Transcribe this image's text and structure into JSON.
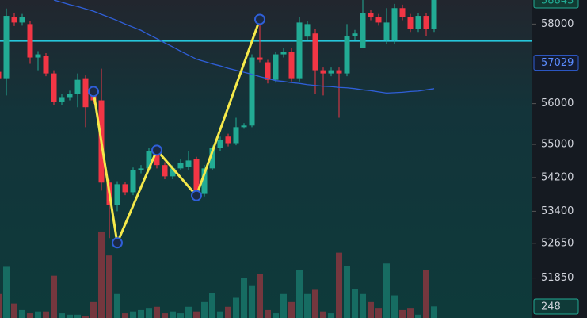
{
  "chart_data": {
    "type": "candlestick",
    "log_scale": true,
    "ylim": [
      50960,
      58620
    ],
    "yticks": [
      58000,
      56000,
      55000,
      54200,
      53400,
      52650,
      51850
    ],
    "up_color": "#22ab94",
    "down_color": "#f23645",
    "open": [
      56790,
      56630,
      58170,
      58040,
      58000,
      57150,
      57190,
      56750,
      56040,
      56160,
      56240,
      56630,
      56240,
      56080,
      54080,
      53550,
      54040,
      53850,
      54380,
      54420,
      54840,
      54500,
      54230,
      54420,
      54460,
      54650,
      53810,
      54420,
      54910,
      55190,
      55030,
      55420,
      55460,
      57150,
      57030,
      56590,
      57230,
      57290,
      56630,
      57680,
      57760,
      56830,
      56750,
      56830,
      56750,
      57700,
      57390,
      58290,
      58170,
      57600,
      57600,
      58410,
      58170,
      57880,
      58210,
      57880
    ],
    "high": [
      56900,
      58400,
      58290,
      58260,
      58080,
      57310,
      57260,
      56830,
      56240,
      56320,
      56750,
      56700,
      56320,
      56870,
      54150,
      54110,
      54100,
      54440,
      54500,
      54910,
      54920,
      54570,
      54500,
      54650,
      54840,
      54700,
      54500,
      54980,
      55190,
      55260,
      55650,
      55520,
      57230,
      58000,
      57090,
      57290,
      57390,
      57390,
      58170,
      58080,
      57880,
      56900,
      56900,
      56900,
      58000,
      57850,
      58620,
      58360,
      58260,
      58410,
      58520,
      58500,
      58260,
      58290,
      58290,
      58950
    ],
    "low": [
      56550,
      56200,
      57950,
      57960,
      56990,
      56830,
      56680,
      55960,
      55960,
      56080,
      55910,
      55420,
      55990,
      53890,
      52770,
      53400,
      53780,
      53780,
      54300,
      54380,
      54420,
      54160,
      54160,
      54380,
      54380,
      53810,
      53750,
      54380,
      54840,
      54950,
      54980,
      55380,
      55420,
      57030,
      56500,
      56520,
      57150,
      56550,
      56550,
      57600,
      56240,
      56200,
      56680,
      55650,
      56680,
      57600,
      57390,
      58100,
      57960,
      57500,
      57500,
      58100,
      57800,
      57800,
      57700,
      57800
    ],
    "close": [
      56630,
      58210,
      58040,
      58170,
      57150,
      57230,
      56750,
      56040,
      56160,
      56240,
      56590,
      55910,
      56080,
      54080,
      53550,
      54040,
      53850,
      54380,
      54420,
      54840,
      54500,
      54230,
      54420,
      54560,
      54610,
      53890,
      54420,
      54910,
      55110,
      55030,
      55420,
      55460,
      57150,
      57090,
      56590,
      57230,
      57290,
      56630,
      58040,
      58000,
      56830,
      56750,
      56830,
      56750,
      57700,
      57760,
      58290,
      58170,
      58040,
      58040,
      58410,
      58170,
      57880,
      58210,
      57880,
      58843
    ],
    "volume": [
      510,
      1090,
      310,
      170,
      100,
      140,
      140,
      900,
      100,
      70,
      70,
      50,
      340,
      1840,
      1330,
      510,
      100,
      140,
      170,
      200,
      240,
      100,
      140,
      100,
      240,
      140,
      340,
      540,
      140,
      240,
      430,
      850,
      680,
      940,
      170,
      100,
      510,
      340,
      1020,
      510,
      600,
      140,
      100,
      1390,
      1100,
      610,
      510,
      340,
      200,
      1160,
      480,
      170,
      200,
      70,
      1020,
      248
    ],
    "volume_ylim": [
      0,
      2700
    ],
    "ma": {
      "color": "#2f5fd8",
      "values": [
        null,
        null,
        null,
        null,
        null,
        null,
        null,
        58620,
        58560,
        58500,
        58450,
        58390,
        58330,
        58250,
        58170,
        58090,
        58000,
        57920,
        57840,
        57730,
        57630,
        57520,
        57420,
        57310,
        57210,
        57110,
        57050,
        56990,
        56940,
        56880,
        56830,
        56780,
        56730,
        56670,
        56620,
        56570,
        56550,
        56520,
        56500,
        56470,
        56450,
        56430,
        56420,
        56400,
        56390,
        56370,
        56340,
        56320,
        56290,
        56260,
        56270,
        56280,
        56300,
        56310,
        56340,
        56370
      ]
    },
    "ma_label": 57029,
    "level": {
      "value": 57570,
      "color": "#26c6da"
    },
    "zigzag": {
      "color": "#f5e94a",
      "index": [
        12,
        15,
        20,
        25,
        33
      ],
      "values": [
        56300,
        52660,
        54860,
        53770,
        58120
      ]
    }
  }
}
